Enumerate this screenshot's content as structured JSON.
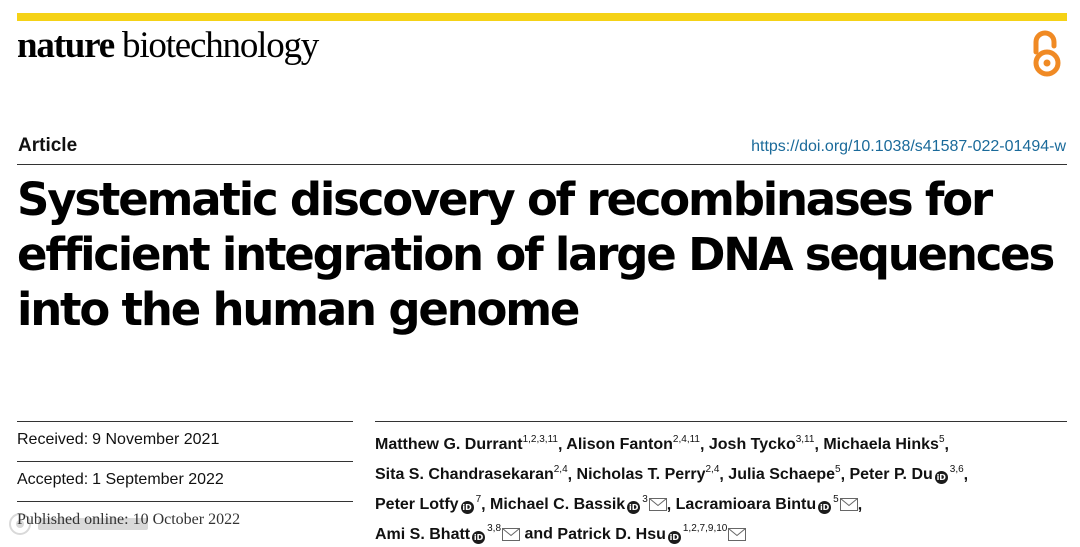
{
  "journal": {
    "name_part1": "nature",
    "name_part2": "biotechnology"
  },
  "article_type": "Article",
  "doi": "https://doi.org/10.1038/s41587-022-01494-w",
  "title_lines": [
    "Systematic discovery of recombinases for",
    "efficient integration of large DNA sequences",
    "into the human genome"
  ],
  "dates": [
    {
      "label": "Received:",
      "value": "9 November 2021"
    },
    {
      "label": "Accepted:",
      "value": "1 September 2022"
    },
    {
      "label": "Published online:",
      "value": "10 October 2022"
    }
  ],
  "authors": [
    {
      "name": "Matthew G. Durrant",
      "affil": "1,2,3,11"
    },
    {
      "name": "Alison Fanton",
      "affil": "2,4,11"
    },
    {
      "name": "Josh Tycko",
      "affil": "3,11"
    },
    {
      "name": "Michaela Hinks",
      "affil": "5"
    },
    {
      "name": "Sita S. Chandrasekaran",
      "affil": "2,4"
    },
    {
      "name": "Nicholas T. Perry",
      "affil": "2,4"
    },
    {
      "name": "Julia Schaepe",
      "affil": "5"
    },
    {
      "name": "Peter P. Du",
      "affil": "3,6"
    },
    {
      "name": "Peter Lotfy",
      "affil": "7"
    },
    {
      "name": "Michael C. Bassik",
      "affil": "3"
    },
    {
      "name": "Lacramioara Bintu",
      "affil": "5"
    },
    {
      "name": "Ami S. Bhatt",
      "affil": "3,8"
    },
    {
      "name": "Patrick D. Hsu",
      "affil": "1,2,7,9,10"
    }
  ],
  "authors_conjunction": "and",
  "icons": {
    "open_access": "open-access-icon",
    "orcid": "orcid-icon",
    "email": "email-icon"
  },
  "colors": {
    "top_bar": "#f5d216",
    "open_access": "#f08a24",
    "doi_link": "#1a6a9a"
  }
}
